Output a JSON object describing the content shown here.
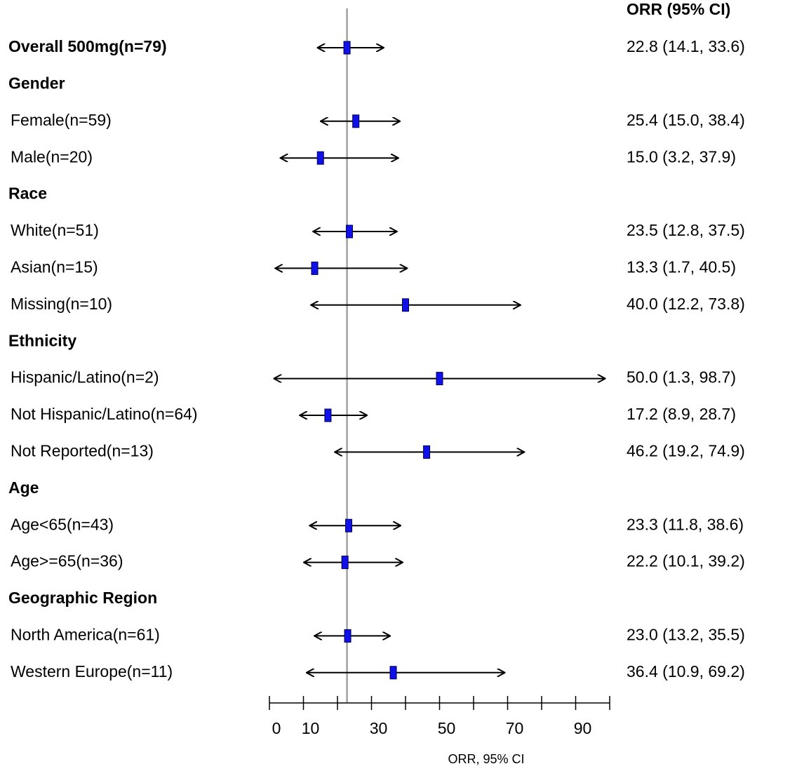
{
  "chart_data": {
    "type": "forest",
    "ci_header": "ORR (95% CI)",
    "xlabel": "ORR, 95% CI",
    "xlim": [
      0,
      100
    ],
    "xticks": [
      0,
      10,
      30,
      50,
      70,
      90
    ],
    "minor_xticks": [
      20,
      40,
      60,
      80,
      100
    ],
    "marker_color": "#1010e8",
    "reference_color": "#a0a0a0",
    "rows": [
      {
        "label": "Overall 500mg(n=79)",
        "bold": true,
        "estimate": 22.8,
        "lower": 14.1,
        "upper": 33.6,
        "ci_label": "22.8 (14.1, 33.6)"
      },
      {
        "label": "Gender",
        "bold": true
      },
      {
        "label": "Female(n=59)",
        "estimate": 25.4,
        "lower": 15.0,
        "upper": 38.4,
        "ci_label": "25.4 (15.0, 38.4)"
      },
      {
        "label": "Male(n=20)",
        "estimate": 15.0,
        "lower": 3.2,
        "upper": 37.9,
        "ci_label": "15.0 (3.2, 37.9)"
      },
      {
        "label": "Race",
        "bold": true
      },
      {
        "label": "White(n=51)",
        "estimate": 23.5,
        "lower": 12.8,
        "upper": 37.5,
        "ci_label": "23.5 (12.8, 37.5)"
      },
      {
        "label": "Asian(n=15)",
        "estimate": 13.3,
        "lower": 1.7,
        "upper": 40.5,
        "ci_label": "13.3 (1.7, 40.5)"
      },
      {
        "label": "Missing(n=10)",
        "estimate": 40.0,
        "lower": 12.2,
        "upper": 73.8,
        "ci_label": "40.0 (12.2, 73.8)"
      },
      {
        "label": "Ethnicity",
        "bold": true
      },
      {
        "label": "Hispanic/Latino(n=2)",
        "estimate": 50.0,
        "lower": 1.3,
        "upper": 98.7,
        "ci_label": "50.0 (1.3, 98.7)"
      },
      {
        "label": "Not Hispanic/Latino(n=64)",
        "estimate": 17.2,
        "lower": 8.9,
        "upper": 28.7,
        "ci_label": "17.2 (8.9, 28.7)"
      },
      {
        "label": "Not Reported(n=13)",
        "estimate": 46.2,
        "lower": 19.2,
        "upper": 74.9,
        "ci_label": "46.2 (19.2, 74.9)"
      },
      {
        "label": "Age",
        "bold": true
      },
      {
        "label": "Age<65(n=43)",
        "estimate": 23.3,
        "lower": 11.8,
        "upper": 38.6,
        "ci_label": "23.3 (11.8, 38.6)"
      },
      {
        "label": "Age>=65(n=36)",
        "estimate": 22.2,
        "lower": 10.1,
        "upper": 39.2,
        "ci_label": "22.2 (10.1, 39.2)"
      },
      {
        "label": "Geographic Region",
        "bold": true
      },
      {
        "label": "North America(n=61)",
        "estimate": 23.0,
        "lower": 13.2,
        "upper": 35.5,
        "ci_label": "23.0 (13.2, 35.5)"
      },
      {
        "label": "Western Europe(n=11)",
        "estimate": 36.4,
        "lower": 10.9,
        "upper": 69.2,
        "ci_label": "36.4 (10.9, 69.2)"
      }
    ]
  }
}
